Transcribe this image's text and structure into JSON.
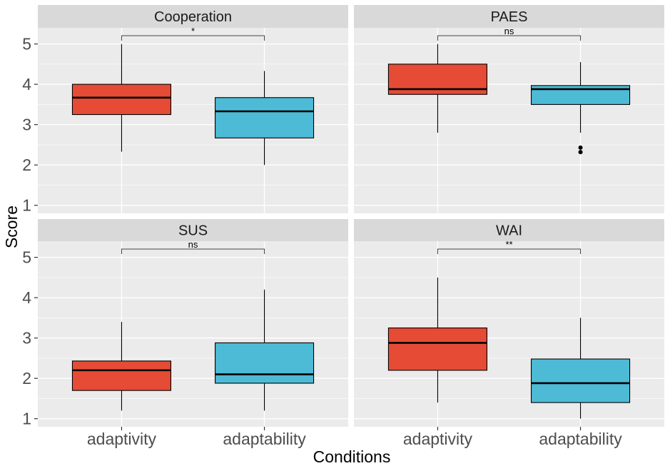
{
  "chart_data": {
    "type": "boxplot",
    "facet_layout": "2x2",
    "xlabel": "Conditions",
    "ylabel": "Score",
    "categories": [
      "adaptivity",
      "adaptability"
    ],
    "ylim": [
      0.8,
      5.4
    ],
    "yticks": [
      1,
      2,
      3,
      4,
      5
    ],
    "grid": true,
    "colors": {
      "adaptivity": "#E64B35",
      "adaptability": "#4DBBD5"
    },
    "panels": [
      {
        "title": "Cooperation",
        "significance": "*",
        "boxes": [
          {
            "category": "adaptivity",
            "min": 2.33,
            "q1": 3.25,
            "median": 3.67,
            "q3": 4.0,
            "max": 5.0,
            "outliers": []
          },
          {
            "category": "adaptability",
            "min": 2.0,
            "q1": 2.67,
            "median": 3.33,
            "q3": 3.67,
            "max": 4.33,
            "outliers": []
          }
        ]
      },
      {
        "title": "PAES",
        "significance": "ns",
        "boxes": [
          {
            "category": "adaptivity",
            "min": 2.8,
            "q1": 3.75,
            "median": 3.88,
            "q3": 4.5,
            "max": 5.0,
            "outliers": []
          },
          {
            "category": "adaptability",
            "min": 2.8,
            "q1": 3.5,
            "median": 3.88,
            "q3": 3.97,
            "max": 4.55,
            "outliers": [
              2.32,
              2.43
            ]
          }
        ]
      },
      {
        "title": "SUS",
        "significance": "ns",
        "boxes": [
          {
            "category": "adaptivity",
            "min": 1.2,
            "q1": 1.7,
            "median": 2.2,
            "q3": 2.43,
            "max": 3.4,
            "outliers": []
          },
          {
            "category": "adaptability",
            "min": 1.2,
            "q1": 1.88,
            "median": 2.1,
            "q3": 2.88,
            "max": 4.2,
            "outliers": []
          }
        ]
      },
      {
        "title": "WAI",
        "significance": "**",
        "boxes": [
          {
            "category": "adaptivity",
            "min": 1.4,
            "q1": 2.2,
            "median": 2.88,
            "q3": 3.25,
            "max": 4.5,
            "outliers": []
          },
          {
            "category": "adaptability",
            "min": 1.0,
            "q1": 1.4,
            "median": 1.88,
            "q3": 2.48,
            "max": 3.5,
            "outliers": []
          }
        ]
      }
    ]
  }
}
